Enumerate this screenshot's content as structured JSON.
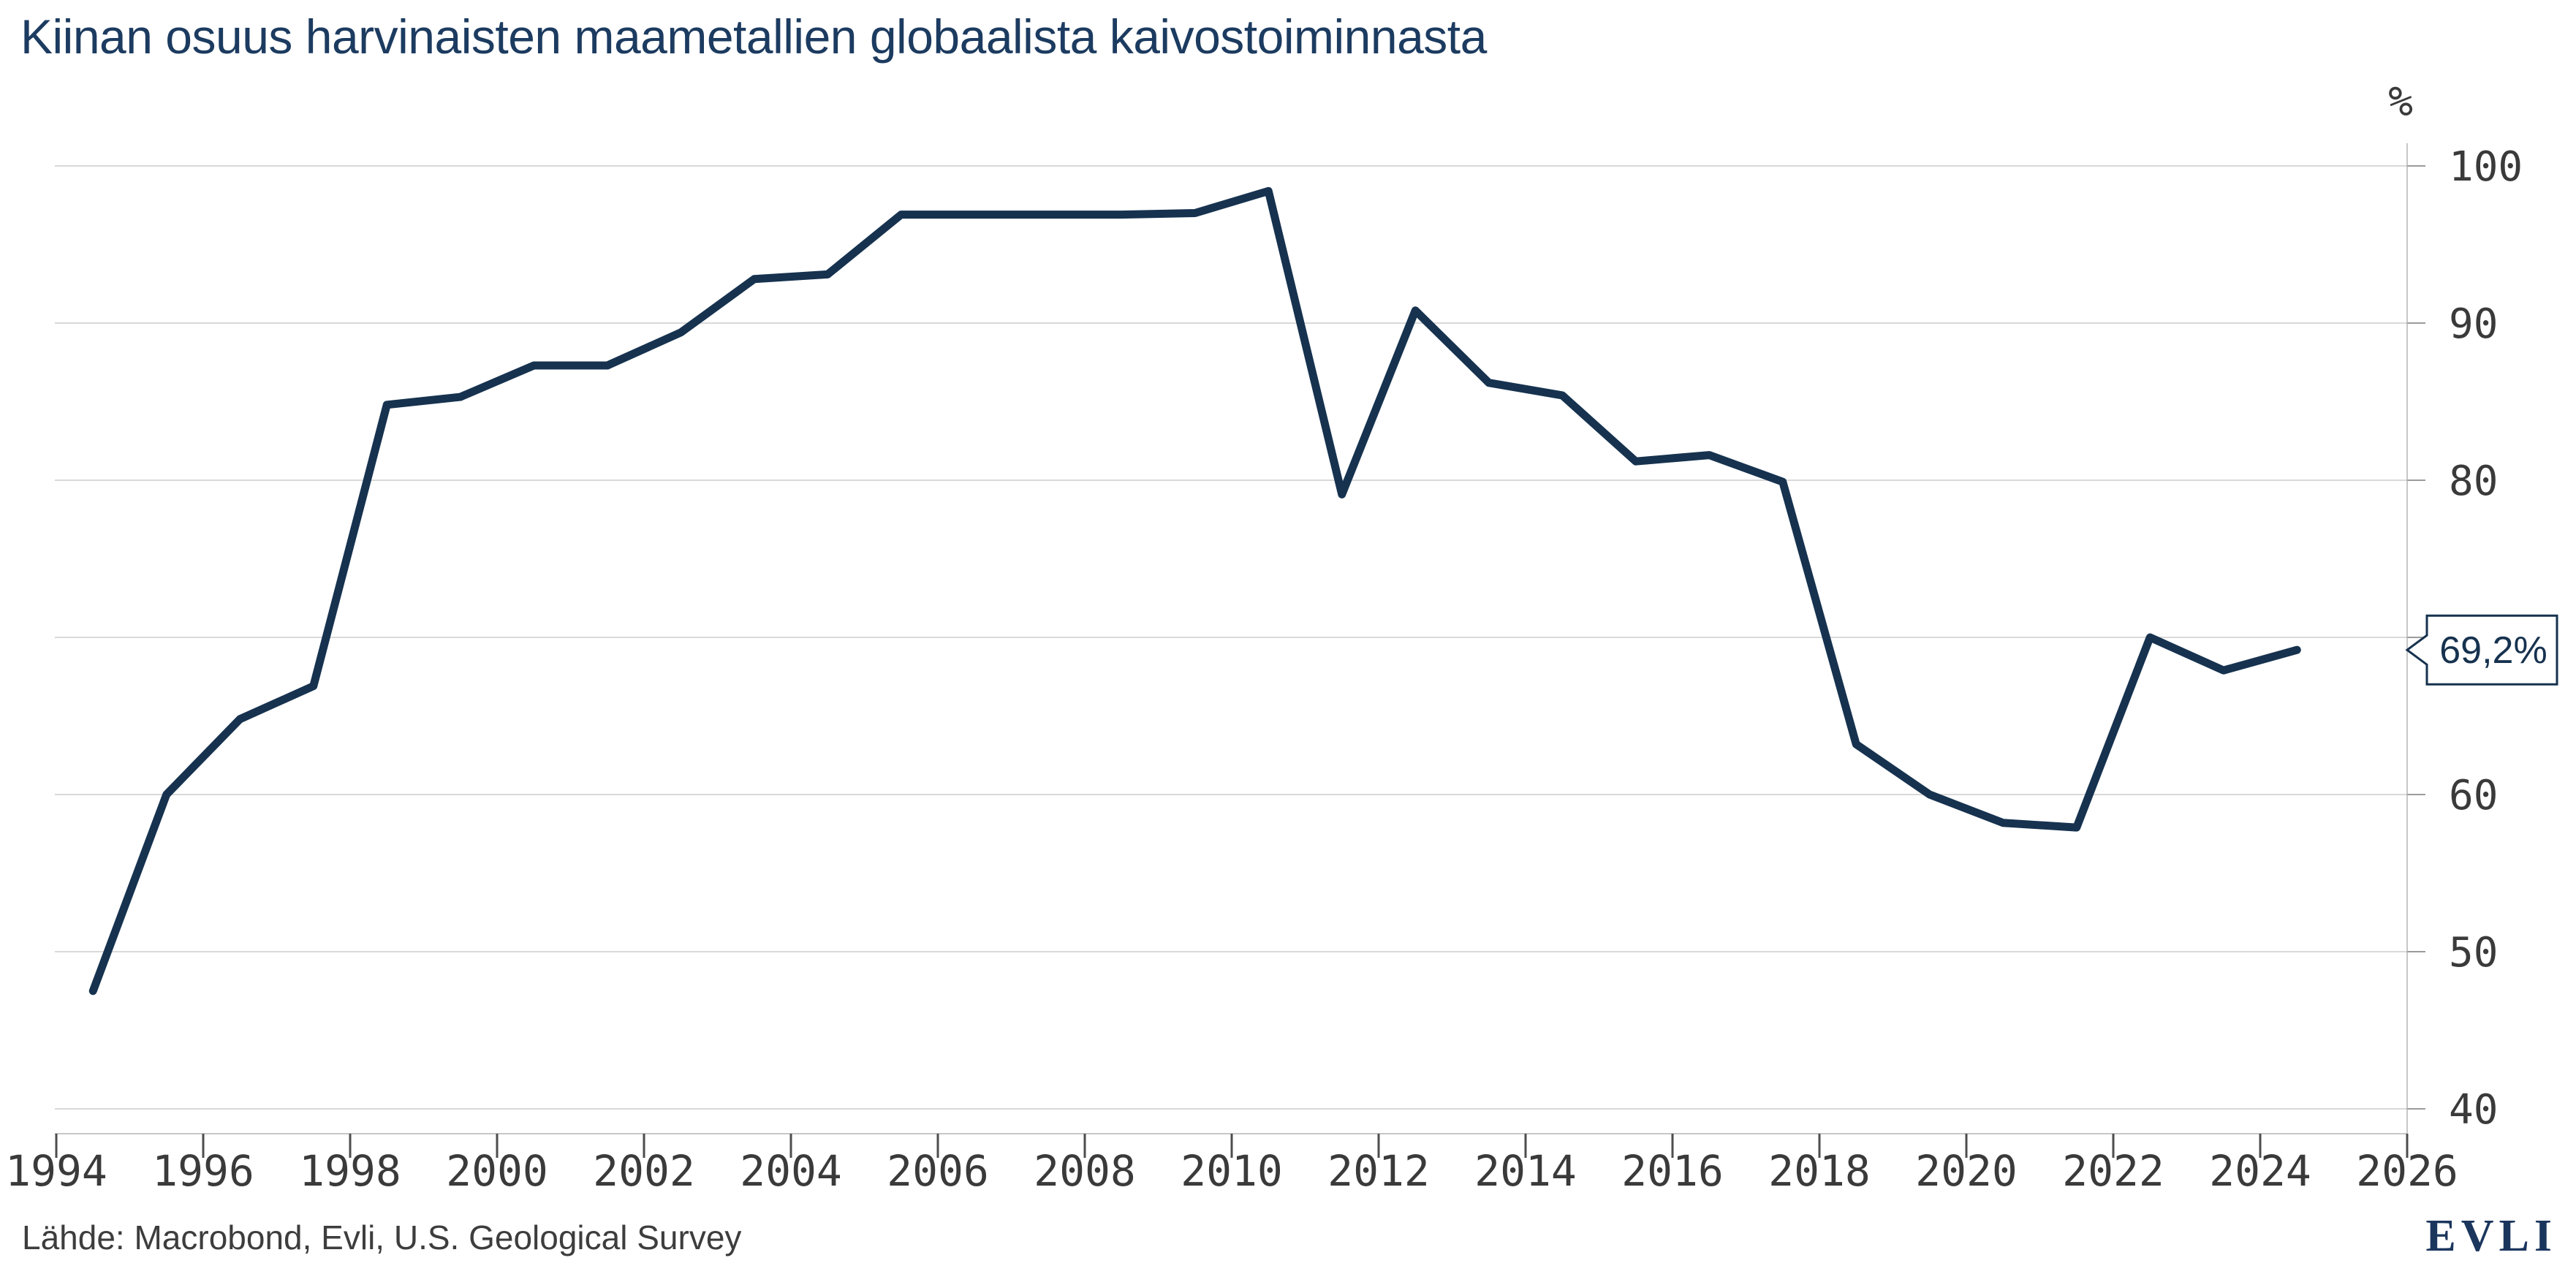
{
  "header": {
    "title": "Kiinan osuus harvinaisten maametallien globaalista kaivostoiminnasta"
  },
  "chart_data": {
    "type": "line",
    "title": "Kiinan osuus harvinaisten maametallien globaalista kaivostoiminnasta",
    "xlabel": "",
    "ylabel": "%",
    "x": [
      1994,
      1995,
      1996,
      1997,
      1998,
      1999,
      2000,
      2001,
      2002,
      2003,
      2004,
      2005,
      2006,
      2007,
      2008,
      2009,
      2010,
      2011,
      2012,
      2013,
      2014,
      2015,
      2016,
      2017,
      2018,
      2019,
      2020,
      2021,
      2022,
      2023,
      2024
    ],
    "series": [
      {
        "name": "Kiinan osuus harvinaisten maametallien globaalista kaivostoiminnasta",
        "values": [
          47.5,
          60.0,
          64.8,
          66.9,
          84.8,
          85.3,
          87.3,
          87.3,
          89.4,
          92.8,
          93.1,
          96.9,
          96.9,
          96.9,
          96.9,
          97.0,
          98.4,
          79.1,
          90.8,
          86.2,
          85.4,
          81.2,
          81.6,
          79.9,
          63.2,
          60.0,
          58.2,
          57.9,
          70.0,
          67.9,
          69.2
        ]
      }
    ],
    "xlim": [
      1994,
      2026
    ],
    "ylim": [
      40,
      100
    ],
    "y_ticks": [
      100,
      90,
      80,
      70,
      60,
      50,
      40
    ],
    "x_ticks": [
      1994,
      1996,
      1998,
      2000,
      2002,
      2004,
      2006,
      2008,
      2010,
      2012,
      2014,
      2016,
      2018,
      2020,
      2022,
      2024,
      2026
    ],
    "grid": "horizontal",
    "legend_position": "none",
    "annotation": {
      "type": "callout",
      "label": "69,2%",
      "value": 69.2
    }
  },
  "colors": {
    "line": "#16324f",
    "title": "#1c3b60",
    "gridline": "#d9d9d9",
    "axis": "#c7c7c7",
    "x_tick": "#4d4d4d",
    "y_tick": "#9b9b9b",
    "tick_label": "#3a3a3a",
    "callout_border": "#16324f",
    "callout_fill": "#ffffff",
    "source_text": "#3d3d3d",
    "logo": "#1b365d"
  },
  "footer": {
    "source": "Lähde: Macrobond, Evli, U.S. Geological Survey",
    "logo": "EVLI"
  }
}
